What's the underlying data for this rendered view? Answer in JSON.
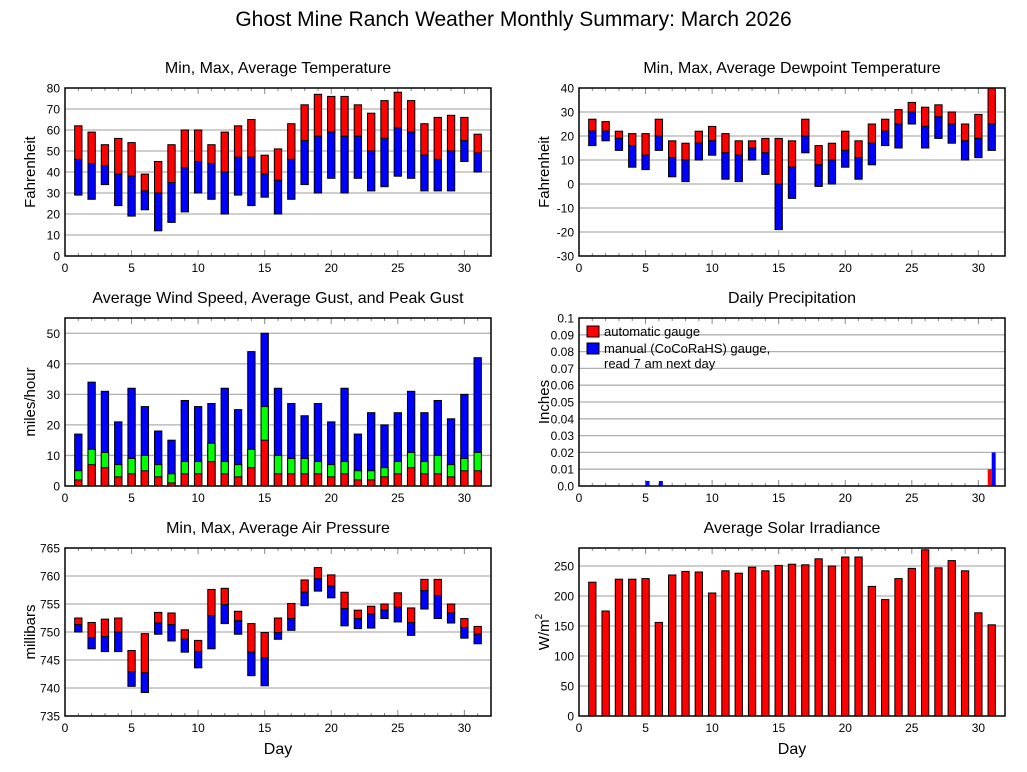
{
  "page_title": "Ghost Mine Ranch Weather Monthly Summary: March 2026",
  "colors": {
    "red": "#ff0000",
    "blue": "#0000ff",
    "green": "#00ff00",
    "grid": "#b0b0b0",
    "frame": "#000000"
  },
  "chart_data": [
    {
      "id": "temperature",
      "type": "bar",
      "title": "Min, Max, Average Temperature",
      "xlabel": "",
      "ylabel": "Fahrenheit",
      "xlim": [
        0,
        32
      ],
      "ylim": [
        0,
        80
      ],
      "xticks": [
        0,
        5,
        10,
        15,
        20,
        25,
        30
      ],
      "yticks": [
        0,
        10,
        20,
        30,
        40,
        50,
        60,
        70,
        80
      ],
      "grid": true,
      "style": "floating-range",
      "x": [
        1,
        2,
        3,
        4,
        5,
        6,
        7,
        8,
        9,
        10,
        11,
        12,
        13,
        14,
        15,
        16,
        17,
        18,
        19,
        20,
        21,
        22,
        23,
        24,
        25,
        26,
        27,
        28,
        29,
        30,
        31
      ],
      "series": [
        {
          "name": "Max",
          "color": "#ff0000",
          "values": [
            62,
            59,
            53,
            56,
            54,
            39,
            45,
            53,
            60,
            60,
            53,
            59,
            62,
            65,
            48,
            51,
            63,
            72,
            77,
            76,
            76,
            72,
            68,
            74,
            78,
            74,
            63,
            66,
            67,
            66,
            58
          ]
        },
        {
          "name": "Average",
          "color": "#0000ff",
          "values": [
            46,
            44,
            43,
            39,
            38,
            31,
            30,
            35,
            42,
            45,
            44,
            40,
            47,
            47,
            39,
            36,
            46,
            55,
            57,
            59,
            57,
            57,
            50,
            56,
            61,
            59,
            48,
            46,
            50,
            55,
            49
          ]
        },
        {
          "name": "Min",
          "values": [
            29,
            27,
            34,
            24,
            19,
            22,
            12,
            16,
            21,
            30,
            27,
            20,
            29,
            24,
            28,
            20,
            27,
            34,
            30,
            37,
            30,
            37,
            31,
            33,
            38,
            37,
            31,
            31,
            31,
            45,
            40
          ]
        }
      ]
    },
    {
      "id": "dewpoint",
      "type": "bar",
      "title": "Min, Max, Average Dewpoint Temperature",
      "xlabel": "",
      "ylabel": "Fahrenheit",
      "xlim": [
        0,
        32
      ],
      "ylim": [
        -30,
        40
      ],
      "xticks": [
        0,
        5,
        10,
        15,
        20,
        25,
        30
      ],
      "yticks": [
        -30,
        -20,
        -10,
        0,
        10,
        20,
        30,
        40
      ],
      "grid": true,
      "style": "floating-range",
      "x": [
        1,
        2,
        3,
        4,
        5,
        6,
        7,
        8,
        9,
        10,
        11,
        12,
        13,
        14,
        15,
        16,
        17,
        18,
        19,
        20,
        21,
        22,
        23,
        24,
        25,
        26,
        27,
        28,
        29,
        30,
        31
      ],
      "series": [
        {
          "name": "Max",
          "color": "#ff0000",
          "values": [
            27,
            26,
            22,
            21,
            21,
            27,
            18,
            17,
            22,
            24,
            21,
            18,
            18,
            19,
            19,
            18,
            27,
            16,
            17,
            22,
            18,
            25,
            27,
            31,
            34,
            32,
            33,
            30,
            25,
            29,
            40
          ]
        },
        {
          "name": "Average",
          "color": "#0000ff",
          "values": [
            22,
            22,
            19,
            16,
            12,
            20,
            11,
            10,
            17,
            18,
            13,
            12,
            15,
            13,
            0,
            7,
            20,
            8,
            10,
            14,
            11,
            17,
            22,
            25,
            30,
            24,
            28,
            25,
            18,
            19,
            25
          ]
        },
        {
          "name": "Min",
          "values": [
            16,
            18,
            14,
            7,
            6,
            14,
            3,
            1,
            10,
            12,
            2,
            1,
            10,
            4,
            -19,
            -6,
            13,
            -1,
            0,
            7,
            2,
            8,
            16,
            15,
            25,
            15,
            19,
            17,
            10,
            11,
            14
          ]
        }
      ]
    },
    {
      "id": "wind",
      "type": "bar",
      "title": "Average Wind Speed, Average Gust, and Peak Gust",
      "xlabel": "",
      "ylabel": "miles/hour",
      "xlim": [
        0,
        32
      ],
      "ylim": [
        0,
        55
      ],
      "xticks": [
        0,
        5,
        10,
        15,
        20,
        25,
        30
      ],
      "yticks": [
        0,
        10,
        20,
        30,
        40,
        50
      ],
      "grid": true,
      "style": "overlaid",
      "x": [
        1,
        2,
        3,
        4,
        5,
        6,
        7,
        8,
        9,
        10,
        11,
        12,
        13,
        14,
        15,
        16,
        17,
        18,
        19,
        20,
        21,
        22,
        23,
        24,
        25,
        26,
        27,
        28,
        29,
        30,
        31
      ],
      "series": [
        {
          "name": "Peak Gust",
          "color": "#0000ff",
          "values": [
            17,
            34,
            31,
            21,
            32,
            26,
            18,
            15,
            28,
            26,
            27,
            32,
            25,
            44,
            50,
            32,
            27,
            23,
            27,
            21,
            32,
            17,
            24,
            20,
            24,
            31,
            24,
            28,
            22,
            30,
            42
          ]
        },
        {
          "name": "Average Gust",
          "color": "#00ff00",
          "values": [
            5,
            12,
            11,
            7,
            9,
            10,
            7,
            4,
            8,
            8,
            14,
            8,
            7,
            12,
            26,
            10,
            9,
            9,
            8,
            7,
            8,
            5,
            5,
            6,
            8,
            11,
            8,
            10,
            7,
            9,
            11
          ]
        },
        {
          "name": "Average Wind Speed",
          "color": "#ff0000",
          "values": [
            2,
            7,
            6,
            3,
            4,
            5,
            3,
            1,
            4,
            4,
            8,
            4,
            3,
            6,
            15,
            4,
            4,
            4,
            4,
            3,
            4,
            2,
            2,
            3,
            4,
            6,
            4,
            4,
            3,
            5,
            5
          ]
        }
      ]
    },
    {
      "id": "precipitation",
      "type": "bar",
      "title": "Daily Precipitation",
      "xlabel": "",
      "ylabel": "Inches",
      "xlim": [
        0,
        32
      ],
      "ylim": [
        0,
        0.1
      ],
      "xticks": [
        0,
        5,
        10,
        15,
        20,
        25,
        30
      ],
      "yticks": [
        "0.0",
        "0.01",
        "0.02",
        "0.03",
        "0.04",
        "0.05",
        "0.06",
        "0.07",
        "0.08",
        "0.09",
        "0.1"
      ],
      "grid": true,
      "legend_position": "top-left",
      "x": [
        1,
        2,
        3,
        4,
        5,
        6,
        7,
        8,
        9,
        10,
        11,
        12,
        13,
        14,
        15,
        16,
        17,
        18,
        19,
        20,
        21,
        22,
        23,
        24,
        25,
        26,
        27,
        28,
        29,
        30,
        31
      ],
      "series": [
        {
          "name": "automatic gauge",
          "color": "#ff0000",
          "values": [
            0,
            0,
            0,
            0,
            0,
            0,
            0,
            0,
            0,
            0,
            0,
            0,
            0,
            0,
            0,
            0,
            0,
            0,
            0,
            0,
            0,
            0,
            0,
            0,
            0,
            0,
            0,
            0,
            0,
            0,
            0.01
          ]
        },
        {
          "name": "manual (CoCoRaHS) gauge,",
          "name_line2": "read 7 am next day",
          "color": "#0000ff",
          "values": [
            0,
            0,
            0,
            0,
            0.003,
            0.003,
            0,
            0,
            0,
            0,
            0,
            0,
            0,
            0,
            0,
            0,
            0,
            0,
            0,
            0,
            0,
            0,
            0,
            0,
            0,
            0,
            0,
            0,
            0,
            0,
            0.02
          ]
        }
      ]
    },
    {
      "id": "pressure",
      "type": "bar",
      "title": "Min, Max, Average Air Pressure",
      "xlabel": "Day",
      "ylabel": "millibars",
      "xlim": [
        0,
        32
      ],
      "ylim": [
        735,
        765
      ],
      "xticks": [
        0,
        5,
        10,
        15,
        20,
        25,
        30
      ],
      "yticks": [
        735,
        740,
        745,
        750,
        755,
        760,
        765
      ],
      "grid": true,
      "style": "floating-range",
      "x": [
        1,
        2,
        3,
        4,
        5,
        6,
        7,
        8,
        9,
        10,
        11,
        12,
        13,
        14,
        15,
        16,
        17,
        18,
        19,
        20,
        21,
        22,
        23,
        24,
        25,
        26,
        27,
        28,
        29,
        30,
        31
      ],
      "series": [
        {
          "name": "Max",
          "color": "#ff0000",
          "values": [
            752.5,
            751.7,
            752.3,
            752.5,
            746.7,
            749.7,
            753.5,
            753.4,
            750.4,
            748.5,
            757.6,
            757.8,
            753.7,
            751.5,
            749.9,
            752.5,
            755.1,
            759.3,
            761.5,
            760.2,
            757.1,
            753.9,
            754.6,
            755.0,
            757.0,
            754.3,
            759.4,
            759.4,
            755.0,
            752.4,
            751.0
          ]
        },
        {
          "name": "Average",
          "color": "#0000ff",
          "values": [
            751.3,
            749.0,
            749.2,
            750.0,
            742.9,
            742.7,
            751.6,
            751.3,
            748.7,
            746.5,
            752.9,
            754.9,
            752.0,
            746.4,
            745.4,
            749.9,
            752.4,
            757.1,
            759.5,
            758.2,
            754.2,
            752.4,
            753.2,
            753.9,
            754.4,
            751.7,
            757.4,
            756.5,
            753.4,
            750.8,
            749.6
          ]
        },
        {
          "name": "Min",
          "values": [
            750.0,
            747.0,
            746.5,
            746.5,
            740.3,
            739.2,
            749.6,
            748.4,
            746.4,
            743.6,
            747.0,
            751.5,
            749.6,
            742.2,
            740.4,
            748.7,
            750.3,
            754.7,
            757.3,
            756.1,
            751.1,
            750.6,
            750.7,
            752.4,
            751.8,
            749.4,
            754.1,
            752.4,
            751.6,
            748.9,
            747.9
          ]
        }
      ]
    },
    {
      "id": "solar",
      "type": "bar",
      "title": "Average Solar Irradiance",
      "xlabel": "Day",
      "ylabel": "W/m",
      "ylabel_superscript": "2",
      "xlim": [
        0,
        32
      ],
      "ylim": [
        0,
        280
      ],
      "xticks": [
        0,
        5,
        10,
        15,
        20,
        25,
        30
      ],
      "yticks": [
        0,
        50,
        100,
        150,
        200,
        250
      ],
      "grid": true,
      "x": [
        1,
        2,
        3,
        4,
        5,
        6,
        7,
        8,
        9,
        10,
        11,
        12,
        13,
        14,
        15,
        16,
        17,
        18,
        19,
        20,
        21,
        22,
        23,
        24,
        25,
        26,
        27,
        28,
        29,
        30,
        31
      ],
      "series": [
        {
          "name": "Average Solar Irradiance",
          "color": "#ff0000",
          "values": [
            223,
            175,
            228,
            228,
            229,
            156,
            235,
            241,
            240,
            205,
            242,
            238,
            248,
            242,
            251,
            253,
            252,
            262,
            250,
            265,
            265,
            216,
            194,
            229,
            246,
            277,
            247,
            259,
            242,
            172,
            152
          ]
        }
      ]
    }
  ]
}
